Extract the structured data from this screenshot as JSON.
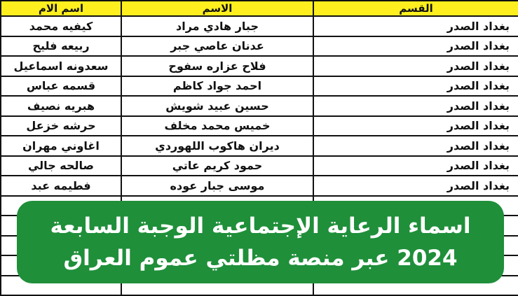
{
  "table": {
    "headers": {
      "section": "القسم",
      "name": "الاسم",
      "mother": "اسم الام"
    },
    "rows": [
      {
        "section": "بغداد الصدر",
        "name": "جبار هادي مراد",
        "mother": "كيفيه محمد"
      },
      {
        "section": "بغداد الصدر",
        "name": "عدنان عاصي جبر",
        "mother": "ربيعه فليح"
      },
      {
        "section": "بغداد الصدر",
        "name": "فلاح عزاره سفوح",
        "mother": "سعدونه اسماعيل"
      },
      {
        "section": "بغداد الصدر",
        "name": "احمد جواد كاظم",
        "mother": "قسمه عباس"
      },
      {
        "section": "بغداد الصدر",
        "name": "حسين عبيد شويش",
        "mother": "هبريه نصيف"
      },
      {
        "section": "بغداد الصدر",
        "name": "خميس محمد مخلف",
        "mother": "حرشه خزعل"
      },
      {
        "section": "بغداد الصدر",
        "name": "ديران هاكوب اللهوردي",
        "mother": "اغاوني مهران"
      },
      {
        "section": "بغداد الصدر",
        "name": "حمود كريم عاتي",
        "mother": "صالحه جالي"
      },
      {
        "section": "بغداد الصدر",
        "name": "موسى جبار عوده",
        "mother": "فطيمه عبد"
      },
      {
        "section": "",
        "name": "",
        "mother": ""
      },
      {
        "section": "",
        "name": "",
        "mother": ""
      },
      {
        "section": "",
        "name": "",
        "mother": ""
      },
      {
        "section": "",
        "name": "",
        "mother": ""
      },
      {
        "section": "",
        "name": "",
        "mother": ""
      }
    ]
  },
  "banner": {
    "line1": "اسماء الرعاية الإجتماعية الوجبة السابعة",
    "line2": "2024 عبر منصة مظلتي عموم العراق",
    "color": "#1f8f3a"
  },
  "colors": {
    "header_bg": "#ffef1f"
  }
}
